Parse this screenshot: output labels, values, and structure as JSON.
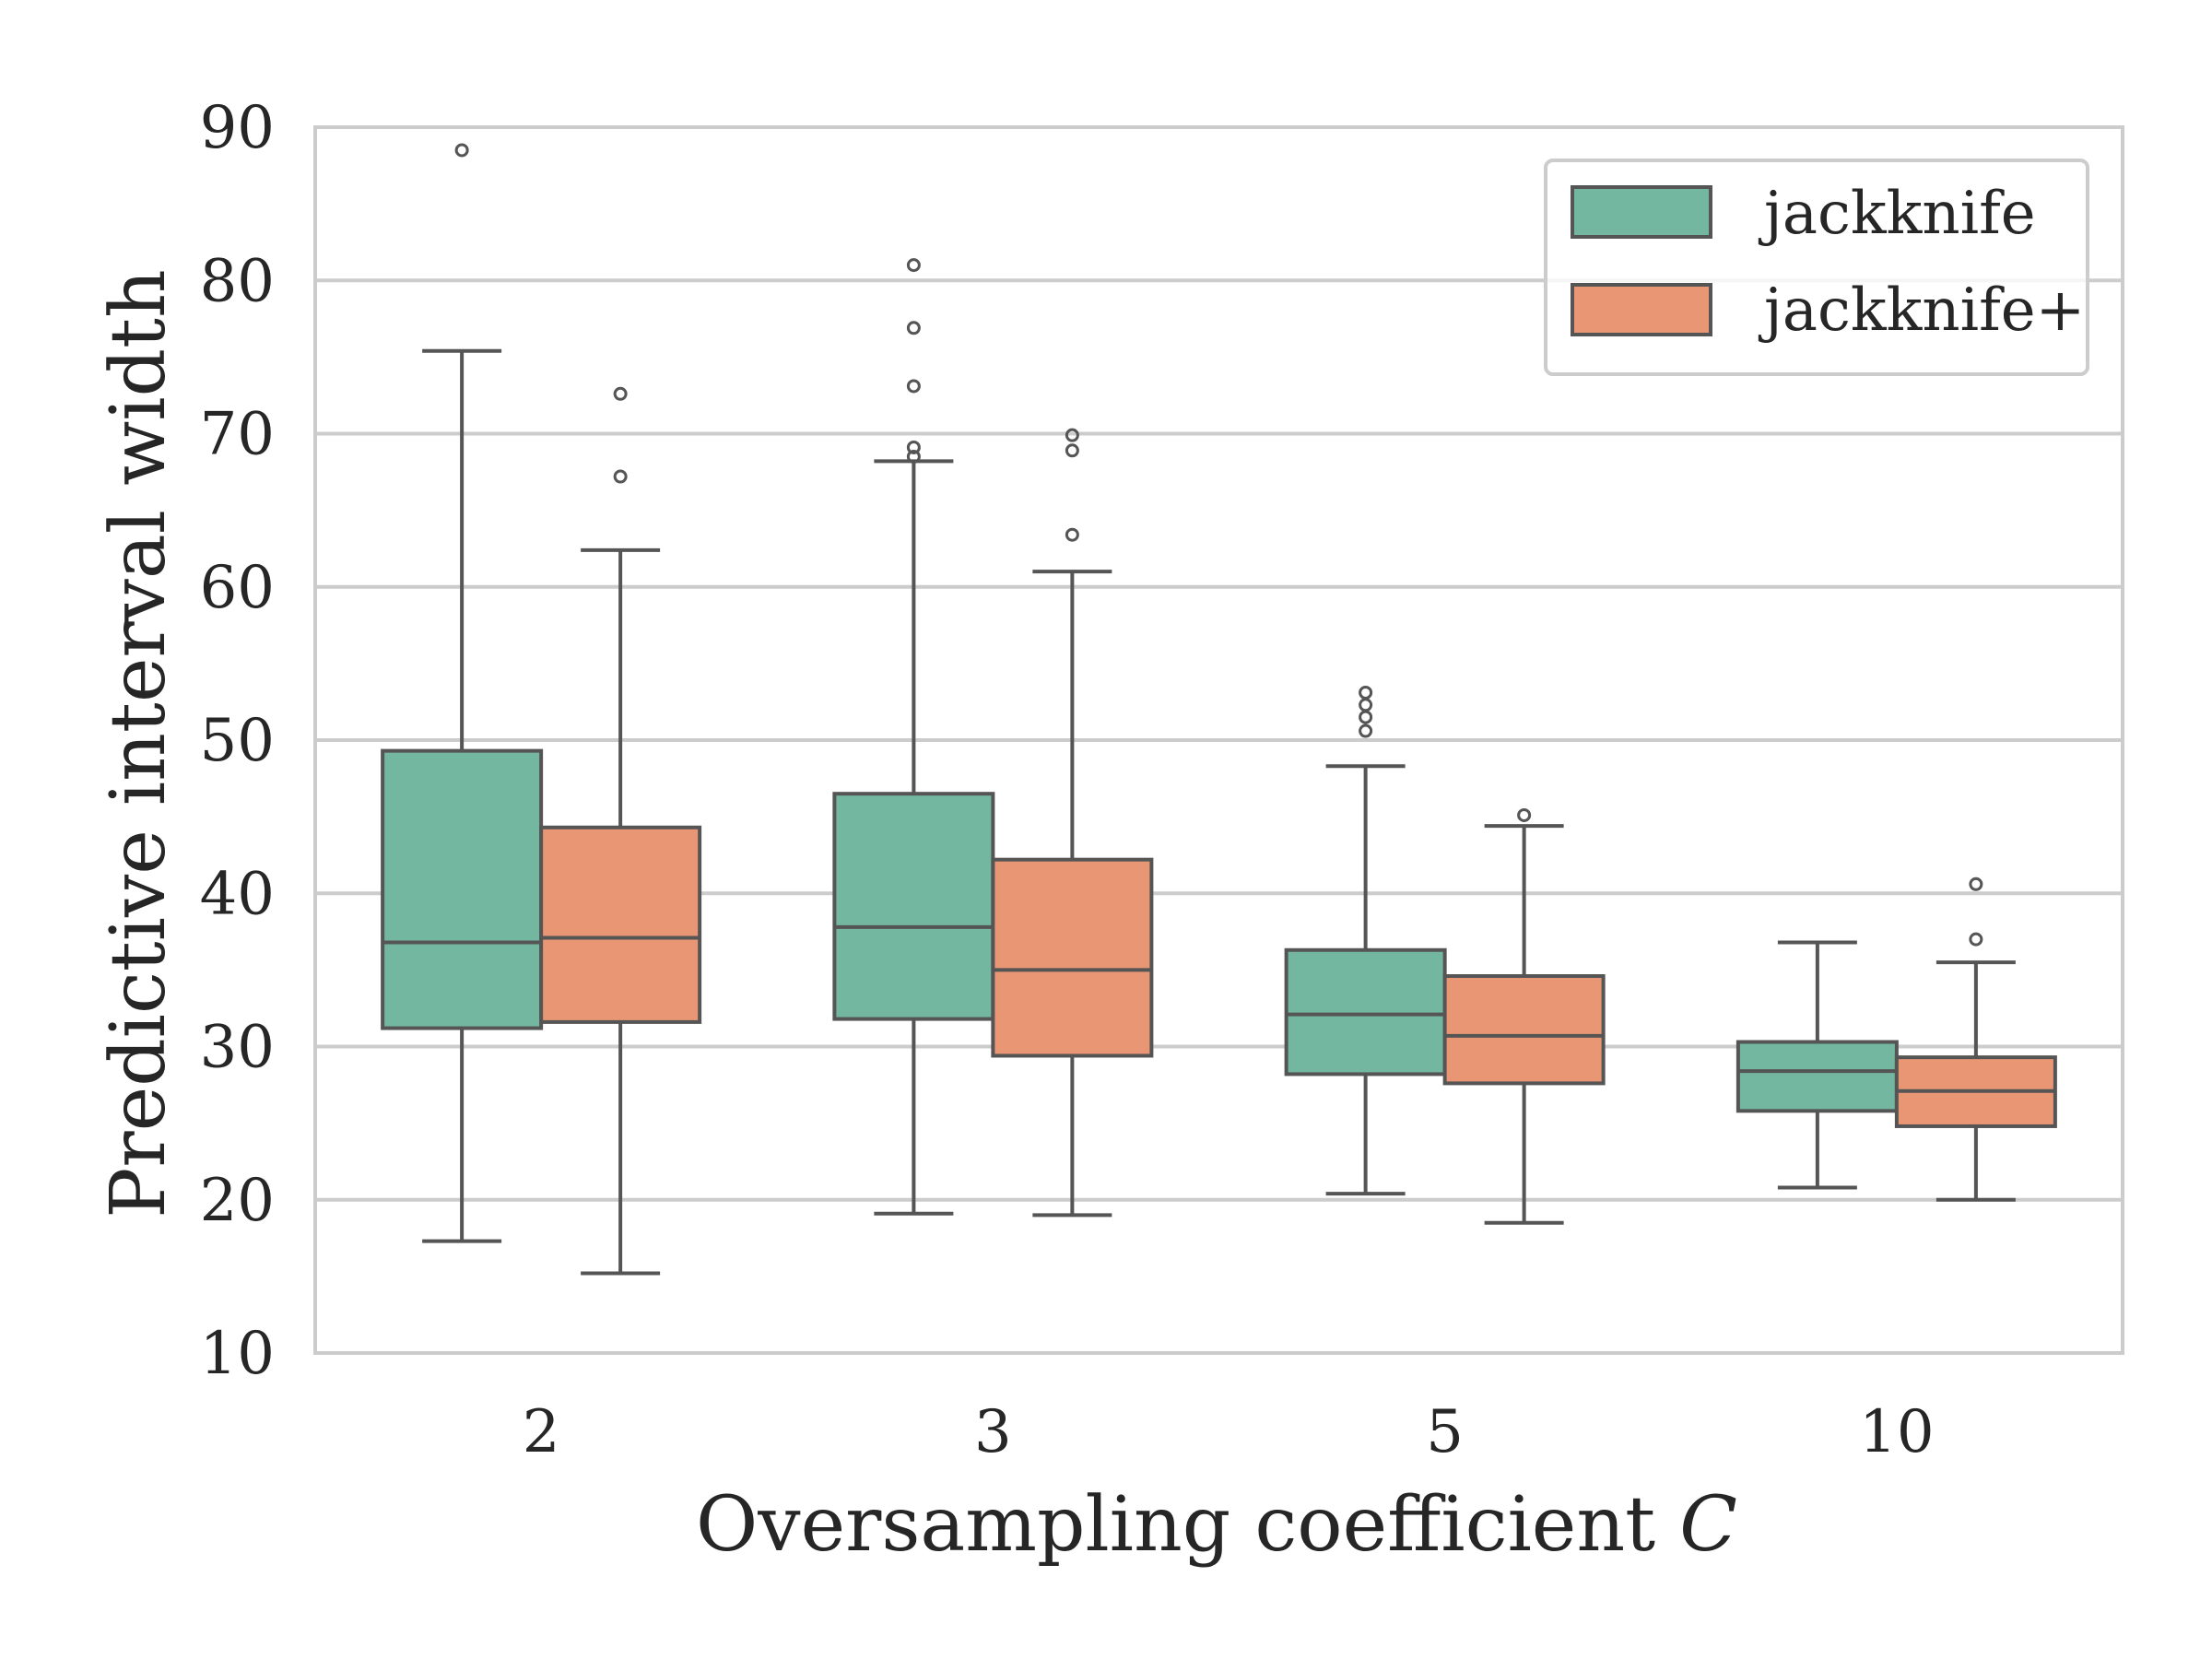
{
  "chart_data": {
    "type": "boxplot",
    "title": "",
    "xlabel": "Oversampling coefficient",
    "xlabel_var": "C",
    "ylabel": "Predictive interval width",
    "ylim": [
      10,
      90
    ],
    "yticks": [
      "10",
      "20",
      "30",
      "40",
      "50",
      "60",
      "70",
      "80",
      "90"
    ],
    "grid": true,
    "legend_position": "top-right",
    "categories": [
      "2",
      "3",
      "5",
      "10"
    ],
    "series": [
      {
        "name": "jackknife",
        "color": "#74b7a1",
        "boxes": [
          {
            "whisker_low": 17.3,
            "q1": 31.2,
            "median": 36.8,
            "q3": 49.3,
            "whisker_high": 75.4,
            "outliers": [
              88.5
            ]
          },
          {
            "whisker_low": 19.1,
            "q1": 31.8,
            "median": 37.8,
            "q3": 46.5,
            "whisker_high": 68.2,
            "outliers": [
              68.5,
              69.1,
              73.1,
              76.9,
              81.0
            ]
          },
          {
            "whisker_low": 20.4,
            "q1": 28.2,
            "median": 32.1,
            "q3": 36.3,
            "whisker_high": 48.3,
            "outliers": [
              50.6,
              51.5,
              52.3,
              53.1
            ]
          },
          {
            "whisker_low": 20.8,
            "q1": 25.8,
            "median": 28.4,
            "q3": 30.3,
            "whisker_high": 36.8,
            "outliers": []
          }
        ]
      },
      {
        "name": "jackknife+",
        "color": "#e99675",
        "boxes": [
          {
            "whisker_low": 15.2,
            "q1": 31.6,
            "median": 37.1,
            "q3": 44.3,
            "whisker_high": 62.4,
            "outliers": [
              67.2,
              72.6
            ]
          },
          {
            "whisker_low": 19.0,
            "q1": 29.4,
            "median": 35.0,
            "q3": 42.2,
            "whisker_high": 61.0,
            "outliers": [
              63.4,
              68.9,
              69.9
            ]
          },
          {
            "whisker_low": 18.5,
            "q1": 27.6,
            "median": 30.7,
            "q3": 34.6,
            "whisker_high": 44.4,
            "outliers": [
              45.1
            ]
          },
          {
            "whisker_low": 20.0,
            "q1": 24.8,
            "median": 27.1,
            "q3": 29.3,
            "whisker_high": 35.5,
            "outliers": [
              37.0,
              40.6
            ]
          }
        ]
      }
    ]
  },
  "colors": {
    "grid": "#cccccc",
    "frame": "#cccccc",
    "line": "#555555",
    "text": "#262626"
  }
}
